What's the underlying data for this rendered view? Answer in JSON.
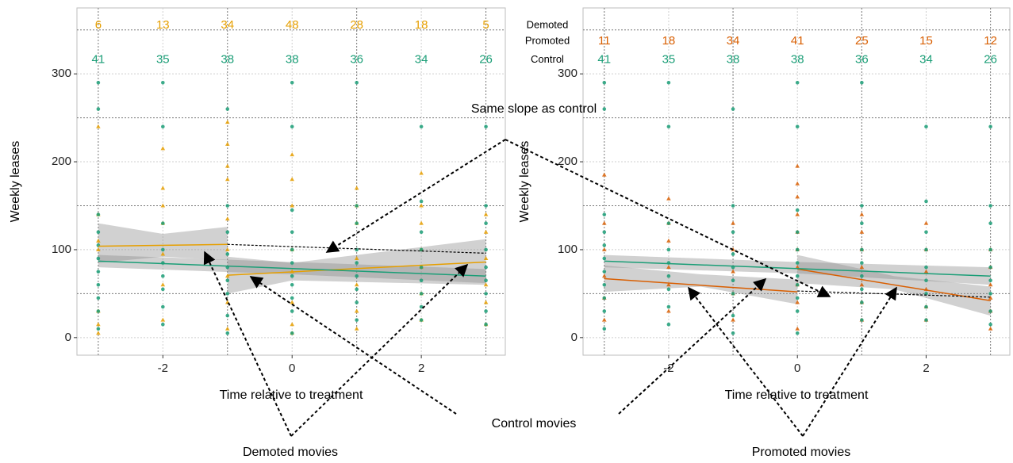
{
  "chart_data": [
    {
      "type": "scatter",
      "y_label": "Weekly leases",
      "x_label": "Time relative to treatment",
      "xlim": [
        -3.33,
        3.3
      ],
      "ylim": [
        -20,
        375
      ],
      "xticks": [
        -2,
        0,
        2
      ],
      "yticks": [
        0,
        100,
        200,
        300
      ],
      "minor_xticks": [
        -3,
        -1,
        1,
        3
      ],
      "minor_yticks": [
        50,
        150,
        250,
        350
      ],
      "grid": true,
      "series": [
        {
          "color": "#e69f00",
          "shape": "triangle",
          "x": [
            -3,
            -3,
            -3,
            -3,
            -3,
            -3,
            -3,
            -2,
            -2,
            -2,
            -2,
            -2,
            -2,
            -2,
            -1,
            -1,
            -1,
            -1,
            -1,
            -1,
            -1,
            -1,
            -1,
            0,
            0,
            0,
            0,
            0,
            0,
            0,
            0,
            1,
            1,
            1,
            1,
            1,
            1,
            1,
            2,
            2,
            2,
            2,
            2,
            2,
            2,
            3,
            3,
            3,
            3,
            3,
            3
          ],
          "values": [
            5,
            15,
            30,
            100,
            110,
            140,
            240,
            20,
            60,
            95,
            130,
            150,
            170,
            215,
            10,
            40,
            70,
            100,
            135,
            180,
            195,
            220,
            245,
            5,
            15,
            40,
            75,
            100,
            150,
            180,
            208,
            10,
            30,
            60,
            90,
            130,
            150,
            170,
            20,
            50,
            80,
            100,
            130,
            150,
            187,
            15,
            40,
            60,
            90,
            120,
            140
          ]
        },
        {
          "color": "#1b9e77",
          "shape": "circle",
          "x": [
            -3,
            -3,
            -3,
            -3,
            -3,
            -3,
            -3,
            -3,
            -3,
            -3,
            -3,
            -2,
            -2,
            -2,
            -2,
            -2,
            -2,
            -2,
            -2,
            -2,
            -1,
            -1,
            -1,
            -1,
            -1,
            -1,
            -1,
            -1,
            -1,
            0,
            0,
            0,
            0,
            0,
            0,
            0,
            0,
            0,
            0,
            0,
            1,
            1,
            1,
            1,
            1,
            1,
            1,
            1,
            1,
            2,
            2,
            2,
            2,
            2,
            2,
            2,
            2,
            2,
            3,
            3,
            3,
            3,
            3,
            3,
            3,
            3,
            3
          ],
          "values": [
            10,
            30,
            45,
            60,
            75,
            90,
            105,
            120,
            140,
            260,
            290,
            15,
            35,
            55,
            70,
            85,
            100,
            130,
            240,
            290,
            5,
            25,
            50,
            65,
            80,
            95,
            120,
            150,
            260,
            5,
            30,
            45,
            60,
            70,
            85,
            100,
            120,
            145,
            240,
            290,
            20,
            40,
            55,
            70,
            85,
            100,
            130,
            150,
            290,
            20,
            35,
            50,
            65,
            80,
            100,
            120,
            155,
            240,
            15,
            30,
            50,
            65,
            80,
            100,
            130,
            150,
            240
          ]
        }
      ],
      "bands": [
        {
          "x": [
            -3,
            -2,
            -1
          ],
          "lower": [
            85,
            92,
            88
          ],
          "upper": [
            130,
            118,
            126
          ]
        },
        {
          "x": [
            -1,
            0,
            3
          ],
          "lower": [
            50,
            65,
            60
          ],
          "upper": [
            92,
            85,
            112
          ]
        },
        {
          "x": [
            -3,
            0,
            3
          ],
          "lower": [
            80,
            72,
            62
          ],
          "upper": [
            94,
            86,
            78
          ]
        }
      ],
      "fits": [
        {
          "color": "#e69f00",
          "dash": false,
          "x": [
            -3,
            -1
          ],
          "values": [
            104,
            106
          ]
        },
        {
          "color": "#e69f00",
          "dash": false,
          "x": [
            -1,
            3
          ],
          "values": [
            71,
            86
          ]
        },
        {
          "color": "#1b9e77",
          "dash": false,
          "x": [
            -3,
            3
          ],
          "values": [
            87,
            70
          ]
        },
        {
          "color": "#000000",
          "dash": true,
          "x": [
            -1,
            3
          ],
          "values": [
            106,
            96
          ]
        }
      ],
      "count_x": [
        -3,
        -2,
        -1,
        0,
        1,
        2,
        3
      ],
      "counts": [
        {
          "color": "#e69f00",
          "values": [
            6,
            13,
            34,
            48,
            28,
            18,
            5
          ]
        },
        {
          "color": "#1b9e77",
          "values": [
            41,
            35,
            38,
            38,
            36,
            34,
            26
          ]
        }
      ]
    },
    {
      "type": "scatter",
      "y_label": "Weekly leases",
      "x_label": "Time relative to treatment",
      "xlim": [
        -3.33,
        3.3
      ],
      "ylim": [
        -20,
        375
      ],
      "xticks": [
        -2,
        0,
        2
      ],
      "yticks": [
        0,
        100,
        200,
        300
      ],
      "minor_xticks": [
        -3,
        -1,
        1,
        3
      ],
      "minor_yticks": [
        50,
        150,
        250,
        350
      ],
      "grid": true,
      "series": [
        {
          "color": "#d95f02",
          "shape": "triangle",
          "x": [
            -3,
            -3,
            -3,
            -3,
            -3,
            -3,
            -2,
            -2,
            -2,
            -2,
            -2,
            -2,
            -1,
            -1,
            -1,
            -1,
            -1,
            0,
            0,
            0,
            0,
            0,
            0,
            0,
            0,
            0,
            0,
            1,
            1,
            1,
            1,
            1,
            1,
            1,
            2,
            2,
            2,
            2,
            2,
            2,
            3,
            3,
            3,
            3,
            3,
            3
          ],
          "values": [
            20,
            45,
            70,
            100,
            130,
            185,
            30,
            60,
            80,
            110,
            130,
            158,
            20,
            50,
            75,
            100,
            130,
            10,
            40,
            60,
            80,
            100,
            120,
            140,
            160,
            175,
            195,
            20,
            40,
            60,
            80,
            100,
            120,
            140,
            20,
            35,
            55,
            75,
            100,
            130,
            10,
            30,
            45,
            60,
            80,
            100
          ]
        },
        {
          "color": "#1b9e77",
          "shape": "circle",
          "x": [
            -3,
            -3,
            -3,
            -3,
            -3,
            -3,
            -3,
            -3,
            -3,
            -3,
            -3,
            -2,
            -2,
            -2,
            -2,
            -2,
            -2,
            -2,
            -2,
            -2,
            -1,
            -1,
            -1,
            -1,
            -1,
            -1,
            -1,
            -1,
            -1,
            0,
            0,
            0,
            0,
            0,
            0,
            0,
            0,
            0,
            0,
            0,
            1,
            1,
            1,
            1,
            1,
            1,
            1,
            1,
            1,
            2,
            2,
            2,
            2,
            2,
            2,
            2,
            2,
            2,
            3,
            3,
            3,
            3,
            3,
            3,
            3,
            3,
            3
          ],
          "values": [
            10,
            30,
            45,
            60,
            75,
            90,
            105,
            120,
            140,
            260,
            290,
            15,
            35,
            55,
            70,
            85,
            100,
            130,
            240,
            290,
            5,
            25,
            50,
            65,
            80,
            95,
            120,
            150,
            260,
            5,
            30,
            45,
            60,
            70,
            85,
            100,
            120,
            145,
            240,
            290,
            20,
            40,
            55,
            70,
            85,
            100,
            130,
            150,
            290,
            20,
            35,
            50,
            65,
            80,
            100,
            120,
            155,
            240,
            15,
            30,
            50,
            65,
            80,
            100,
            130,
            150,
            240
          ]
        }
      ],
      "bands": [
        {
          "x": [
            -3,
            -1.5,
            0
          ],
          "lower": [
            52,
            58,
            38
          ],
          "upper": [
            82,
            72,
            66
          ]
        },
        {
          "x": [
            0,
            1.5,
            3
          ],
          "lower": [
            62,
            55,
            25
          ],
          "upper": [
            94,
            70,
            58
          ]
        },
        {
          "x": [
            -3,
            0,
            3
          ],
          "lower": [
            80,
            73,
            60
          ],
          "upper": [
            94,
            86,
            80
          ]
        }
      ],
      "fits": [
        {
          "color": "#d95f02",
          "dash": false,
          "x": [
            -3,
            0
          ],
          "values": [
            67,
            52
          ]
        },
        {
          "color": "#d95f02",
          "dash": false,
          "x": [
            0,
            3
          ],
          "values": [
            78,
            42
          ]
        },
        {
          "color": "#1b9e77",
          "dash": false,
          "x": [
            -3,
            3
          ],
          "values": [
            87,
            70
          ]
        },
        {
          "color": "#000000",
          "dash": true,
          "x": [
            0,
            3
          ],
          "values": [
            53,
            46
          ]
        }
      ],
      "count_row_labels": [
        "Demoted",
        "Promoted",
        "Control"
      ],
      "count_x": [
        -3,
        -2,
        -1,
        0,
        1,
        2,
        3
      ],
      "counts": [
        {
          "color": "#d95f02",
          "values": [
            11,
            18,
            34,
            41,
            25,
            15,
            12
          ]
        },
        {
          "color": "#1b9e77",
          "values": [
            41,
            35,
            38,
            38,
            36,
            34,
            26
          ]
        }
      ]
    }
  ],
  "annotations": [
    "Same slope as control",
    "Control movies",
    "Demoted movies",
    "Promoted movies"
  ]
}
